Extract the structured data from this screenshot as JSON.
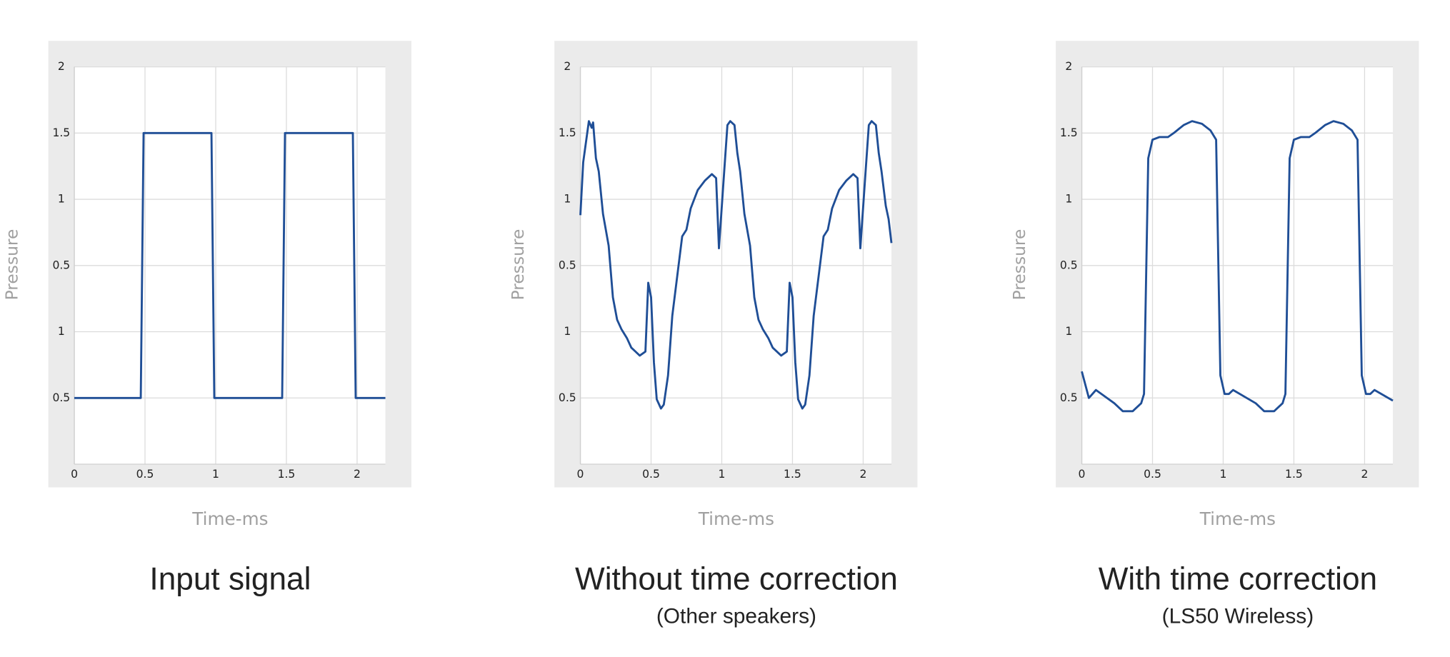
{
  "chart_data": [
    {
      "type": "line",
      "title": "Input signal",
      "xlabel": "Time-ms",
      "ylabel": "Pressure",
      "color": "#1f4e96",
      "x": [
        0,
        0.47,
        0.49,
        0.97,
        0.99,
        1.47,
        1.49,
        1.97,
        1.99,
        2.2
      ],
      "values": [
        0.5,
        0.5,
        2.5,
        2.5,
        0.5,
        0.5,
        2.5,
        2.5,
        0.5,
        0.5
      ],
      "xlim": [
        0,
        2.2
      ],
      "xticks": [
        0,
        0.5,
        1,
        1.5,
        2
      ],
      "ylim": [
        0,
        3
      ],
      "yticks": [
        0.5,
        1,
        {
          "value": 1.5,
          "label": "0.5"
        },
        {
          "value": 2,
          "label": "1"
        },
        {
          "value": 2.5,
          "label": "1.5"
        },
        {
          "value": 3,
          "label": "2"
        }
      ],
      "grid": true
    },
    {
      "type": "line",
      "title": "Without time correction",
      "subtitle": "(Other speakers)",
      "xlabel": "Time-ms",
      "ylabel": "Pressure",
      "color": "#1f4e96",
      "x": [
        0,
        0.02,
        0.06,
        0.08,
        0.09,
        0.11,
        0.13,
        0.16,
        0.2,
        0.23,
        0.26,
        0.29,
        0.33,
        0.36,
        0.42,
        0.46,
        0.48,
        0.5,
        0.52,
        0.54,
        0.57,
        0.59,
        0.62,
        0.65,
        0.72,
        0.75,
        0.78,
        0.83,
        0.88,
        0.93,
        0.96,
        0.98,
        1.01,
        1.04,
        1.06,
        1.09,
        1.11,
        1.13,
        1.16,
        1.2,
        1.23,
        1.26,
        1.29,
        1.33,
        1.36,
        1.42,
        1.46,
        1.48,
        1.5,
        1.52,
        1.54,
        1.57,
        1.59,
        1.62,
        1.65,
        1.72,
        1.75,
        1.78,
        1.83,
        1.88,
        1.93,
        1.96,
        1.98,
        2.01,
        2.04,
        2.06,
        2.09,
        2.11,
        2.13,
        2.16,
        2.18,
        2.2
      ],
      "values": [
        1.88,
        2.28,
        2.59,
        2.54,
        2.58,
        2.31,
        2.21,
        1.89,
        1.65,
        1.26,
        1.09,
        1.02,
        0.95,
        0.88,
        0.82,
        0.85,
        1.37,
        1.26,
        0.77,
        0.49,
        0.42,
        0.45,
        0.67,
        1.12,
        1.72,
        1.77,
        1.93,
        2.07,
        2.14,
        2.19,
        2.16,
        1.63,
        2.1,
        2.56,
        2.59,
        2.56,
        2.35,
        2.21,
        1.89,
        1.65,
        1.26,
        1.09,
        1.02,
        0.95,
        0.88,
        0.82,
        0.85,
        1.37,
        1.26,
        0.77,
        0.49,
        0.42,
        0.45,
        0.67,
        1.12,
        1.72,
        1.77,
        1.93,
        2.07,
        2.14,
        2.19,
        2.16,
        1.63,
        2.1,
        2.56,
        2.59,
        2.56,
        2.35,
        2.21,
        1.95,
        1.85,
        1.67
      ],
      "xlim": [
        0,
        2.2
      ],
      "xticks": [
        0,
        0.5,
        1,
        1.5,
        2
      ],
      "ylim": [
        0,
        3
      ],
      "yticks": [
        0.5,
        1,
        {
          "value": 1.5,
          "label": "0.5"
        },
        {
          "value": 2,
          "label": "1"
        },
        {
          "value": 2.5,
          "label": "1.5"
        },
        {
          "value": 3,
          "label": "2"
        }
      ],
      "grid": true
    },
    {
      "type": "line",
      "title": "With time correction",
      "subtitle": "(LS50 Wireless)",
      "xlabel": "Time-ms",
      "ylabel": "Pressure",
      "color": "#1f4e96",
      "x": [
        0,
        0.05,
        0.1,
        0.23,
        0.29,
        0.36,
        0.42,
        0.44,
        0.47,
        0.5,
        0.55,
        0.61,
        0.65,
        0.72,
        0.78,
        0.85,
        0.91,
        0.95,
        0.98,
        1.01,
        1.04,
        1.07,
        1.23,
        1.29,
        1.36,
        1.42,
        1.44,
        1.47,
        1.5,
        1.55,
        1.61,
        1.65,
        1.72,
        1.78,
        1.85,
        1.91,
        1.95,
        1.98,
        2.01,
        2.04,
        2.07,
        2.2
      ],
      "values": [
        0.7,
        0.5,
        0.56,
        0.46,
        0.4,
        0.4,
        0.46,
        0.53,
        2.31,
        2.45,
        2.47,
        2.47,
        2.5,
        2.56,
        2.59,
        2.57,
        2.52,
        2.45,
        0.67,
        0.53,
        0.53,
        0.56,
        0.46,
        0.4,
        0.4,
        0.46,
        0.53,
        2.31,
        2.45,
        2.47,
        2.47,
        2.5,
        2.56,
        2.59,
        2.57,
        2.52,
        2.45,
        0.67,
        0.53,
        0.53,
        0.56,
        0.48
      ],
      "xlim": [
        0,
        2.2
      ],
      "xticks": [
        0,
        0.5,
        1,
        1.5,
        2
      ],
      "ylim": [
        0,
        3
      ],
      "yticks": [
        0.5,
        1,
        {
          "value": 1.5,
          "label": "0.5"
        },
        {
          "value": 2,
          "label": "1"
        },
        {
          "value": 2.5,
          "label": "1.5"
        },
        {
          "value": 3,
          "label": "2"
        }
      ],
      "grid": true
    }
  ]
}
